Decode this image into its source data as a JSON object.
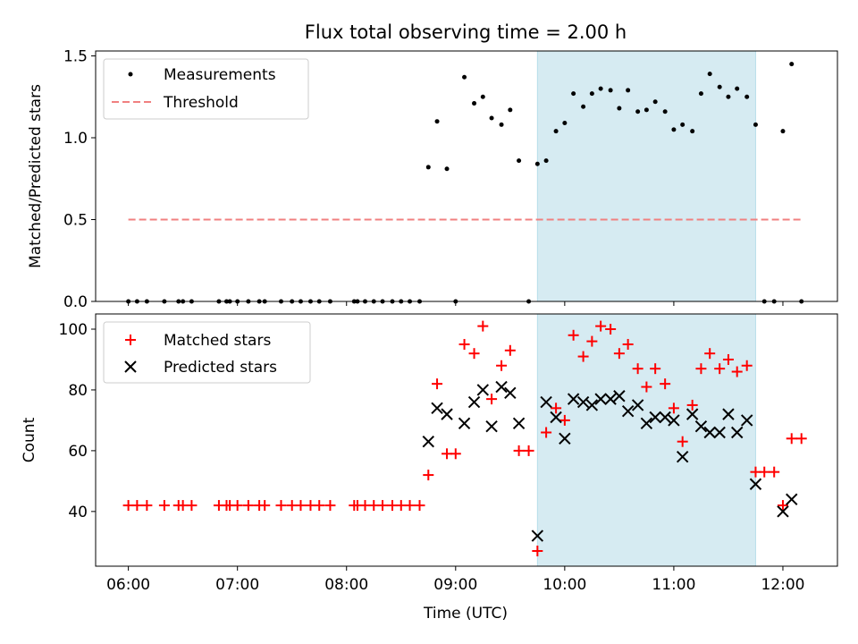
{
  "title": "Flux total observing time = 2.00 h",
  "xlabel": "Time (UTC)",
  "x_ticks": [
    "06:00",
    "07:00",
    "08:00",
    "09:00",
    "10:00",
    "11:00",
    "12:00"
  ],
  "x_tick_values": [
    6.0,
    7.0,
    8.0,
    9.0,
    10.0,
    11.0,
    12.0
  ],
  "x_range": [
    5.7,
    12.5
  ],
  "highlight_span": [
    9.75,
    11.75
  ],
  "colors": {
    "measurement": "#000000",
    "threshold": "#f08080",
    "matched": "#ff0000",
    "predicted": "#000000",
    "span_fill": "#add8e6"
  },
  "top_panel": {
    "ylabel": "Matched/Predicted stars",
    "y_ticks": [
      "0.0",
      "0.5",
      "1.0",
      "1.5"
    ],
    "y_tick_values": [
      0.0,
      0.5,
      1.0,
      1.5
    ],
    "legend": {
      "measurements": "Measurements",
      "threshold": "Threshold"
    }
  },
  "bottom_panel": {
    "ylabel": "Count",
    "y_ticks": [
      "40",
      "60",
      "80",
      "100"
    ],
    "y_tick_values": [
      40,
      60,
      80,
      100
    ],
    "legend": {
      "matched": "Matched stars",
      "predicted": "Predicted stars"
    }
  },
  "chart_data": [
    {
      "type": "scatter",
      "title": "Flux total observing time = 2.00 h",
      "xlabel": "",
      "ylabel": "Matched/Predicted stars",
      "xlim": [
        5.7,
        12.5
      ],
      "ylim": [
        0,
        1.53
      ],
      "legend_position": "top-left",
      "series": [
        {
          "name": "Measurements",
          "points": [
            [
              6.0,
              0
            ],
            [
              6.08,
              0
            ],
            [
              6.17,
              0
            ],
            [
              6.33,
              0
            ],
            [
              6.46,
              0
            ],
            [
              6.5,
              0
            ],
            [
              6.58,
              0
            ],
            [
              6.83,
              0
            ],
            [
              6.9,
              0
            ],
            [
              6.93,
              0
            ],
            [
              7.0,
              0
            ],
            [
              7.1,
              0
            ],
            [
              7.2,
              0
            ],
            [
              7.25,
              0
            ],
            [
              7.4,
              0
            ],
            [
              7.5,
              0
            ],
            [
              7.58,
              0
            ],
            [
              7.67,
              0
            ],
            [
              7.75,
              0
            ],
            [
              7.85,
              0
            ],
            [
              8.07,
              0
            ],
            [
              8.1,
              0
            ],
            [
              8.17,
              0
            ],
            [
              8.25,
              0
            ],
            [
              8.33,
              0
            ],
            [
              8.42,
              0
            ],
            [
              8.5,
              0
            ],
            [
              8.58,
              0
            ],
            [
              8.67,
              0
            ],
            [
              8.75,
              0.82
            ],
            [
              8.83,
              1.1
            ],
            [
              8.92,
              0.81
            ],
            [
              9.0,
              0
            ],
            [
              9.08,
              1.37
            ],
            [
              9.17,
              1.21
            ],
            [
              9.25,
              1.25
            ],
            [
              9.33,
              1.12
            ],
            [
              9.42,
              1.08
            ],
            [
              9.5,
              1.17
            ],
            [
              9.58,
              0.86
            ],
            [
              9.67,
              0
            ],
            [
              9.75,
              0.84
            ],
            [
              9.83,
              0.86
            ],
            [
              9.92,
              1.04
            ],
            [
              10.0,
              1.09
            ],
            [
              10.08,
              1.27
            ],
            [
              10.17,
              1.19
            ],
            [
              10.25,
              1.27
            ],
            [
              10.33,
              1.3
            ],
            [
              10.42,
              1.29
            ],
            [
              10.5,
              1.18
            ],
            [
              10.58,
              1.29
            ],
            [
              10.67,
              1.16
            ],
            [
              10.75,
              1.17
            ],
            [
              10.83,
              1.22
            ],
            [
              10.92,
              1.16
            ],
            [
              11.0,
              1.05
            ],
            [
              11.08,
              1.08
            ],
            [
              11.17,
              1.04
            ],
            [
              11.25,
              1.27
            ],
            [
              11.33,
              1.39
            ],
            [
              11.42,
              1.31
            ],
            [
              11.5,
              1.25
            ],
            [
              11.58,
              1.3
            ],
            [
              11.67,
              1.25
            ],
            [
              11.75,
              1.08
            ],
            [
              11.83,
              0
            ],
            [
              11.92,
              0
            ],
            [
              12.0,
              1.04
            ],
            [
              12.08,
              1.45
            ],
            [
              12.17,
              0
            ]
          ]
        },
        {
          "name": "Threshold",
          "type": "line",
          "points": [
            [
              6.0,
              0.5
            ],
            [
              12.17,
              0.5
            ]
          ]
        }
      ]
    },
    {
      "type": "scatter",
      "title": "",
      "xlabel": "Time (UTC)",
      "ylabel": "Count",
      "xlim": [
        5.7,
        12.5
      ],
      "ylim": [
        22,
        105
      ],
      "legend_position": "top-left",
      "series": [
        {
          "name": "Matched stars",
          "points": [
            [
              6.0,
              42
            ],
            [
              6.08,
              42
            ],
            [
              6.17,
              42
            ],
            [
              6.33,
              42
            ],
            [
              6.46,
              42
            ],
            [
              6.5,
              42
            ],
            [
              6.58,
              42
            ],
            [
              6.83,
              42
            ],
            [
              6.9,
              42
            ],
            [
              6.93,
              42
            ],
            [
              7.0,
              42
            ],
            [
              7.1,
              42
            ],
            [
              7.2,
              42
            ],
            [
              7.25,
              42
            ],
            [
              7.4,
              42
            ],
            [
              7.5,
              42
            ],
            [
              7.58,
              42
            ],
            [
              7.67,
              42
            ],
            [
              7.75,
              42
            ],
            [
              7.85,
              42
            ],
            [
              8.07,
              42
            ],
            [
              8.1,
              42
            ],
            [
              8.17,
              42
            ],
            [
              8.25,
              42
            ],
            [
              8.33,
              42
            ],
            [
              8.42,
              42
            ],
            [
              8.5,
              42
            ],
            [
              8.58,
              42
            ],
            [
              8.67,
              42
            ],
            [
              8.75,
              52
            ],
            [
              8.83,
              82
            ],
            [
              8.92,
              59
            ],
            [
              9.0,
              59
            ],
            [
              9.08,
              95
            ],
            [
              9.17,
              92
            ],
            [
              9.25,
              101
            ],
            [
              9.33,
              77
            ],
            [
              9.42,
              88
            ],
            [
              9.5,
              93
            ],
            [
              9.58,
              60
            ],
            [
              9.67,
              60
            ],
            [
              9.75,
              27
            ],
            [
              9.83,
              66
            ],
            [
              9.92,
              74
            ],
            [
              10.0,
              70
            ],
            [
              10.08,
              98
            ],
            [
              10.17,
              91
            ],
            [
              10.25,
              96
            ],
            [
              10.33,
              101
            ],
            [
              10.42,
              100
            ],
            [
              10.5,
              92
            ],
            [
              10.58,
              95
            ],
            [
              10.67,
              87
            ],
            [
              10.75,
              81
            ],
            [
              10.83,
              87
            ],
            [
              10.92,
              82
            ],
            [
              11.0,
              74
            ],
            [
              11.08,
              63
            ],
            [
              11.17,
              75
            ],
            [
              11.25,
              87
            ],
            [
              11.33,
              92
            ],
            [
              11.42,
              87
            ],
            [
              11.5,
              90
            ],
            [
              11.58,
              86
            ],
            [
              11.67,
              88
            ],
            [
              11.75,
              53
            ],
            [
              11.83,
              53
            ],
            [
              11.92,
              53
            ],
            [
              12.0,
              42
            ],
            [
              12.08,
              64
            ],
            [
              12.17,
              64
            ]
          ]
        },
        {
          "name": "Predicted stars",
          "points": [
            [
              8.75,
              63
            ],
            [
              8.83,
              74
            ],
            [
              8.92,
              72
            ],
            [
              9.08,
              69
            ],
            [
              9.17,
              76
            ],
            [
              9.25,
              80
            ],
            [
              9.33,
              68
            ],
            [
              9.42,
              81
            ],
            [
              9.5,
              79
            ],
            [
              9.58,
              69
            ],
            [
              9.75,
              32
            ],
            [
              9.83,
              76
            ],
            [
              9.92,
              71
            ],
            [
              10.0,
              64
            ],
            [
              10.08,
              77
            ],
            [
              10.17,
              76
            ],
            [
              10.25,
              75
            ],
            [
              10.33,
              77
            ],
            [
              10.42,
              77
            ],
            [
              10.5,
              78
            ],
            [
              10.58,
              73
            ],
            [
              10.67,
              75
            ],
            [
              10.75,
              69
            ],
            [
              10.83,
              71
            ],
            [
              10.92,
              71
            ],
            [
              11.0,
              70
            ],
            [
              11.08,
              58
            ],
            [
              11.17,
              72
            ],
            [
              11.25,
              68
            ],
            [
              11.33,
              66
            ],
            [
              11.42,
              66
            ],
            [
              11.5,
              72
            ],
            [
              11.58,
              66
            ],
            [
              11.67,
              70
            ],
            [
              11.75,
              49
            ],
            [
              12.0,
              40
            ],
            [
              12.08,
              44
            ]
          ]
        }
      ]
    }
  ]
}
